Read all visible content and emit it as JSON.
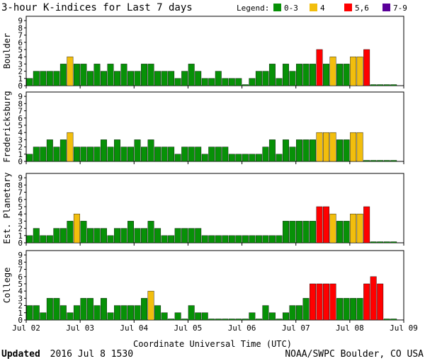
{
  "title": "3-hour K-indices for Last 7 days",
  "legend": {
    "label": "Legend:",
    "items": [
      {
        "label": "0-3",
        "color": "#079107"
      },
      {
        "label": "4",
        "color": "#f2be0d"
      },
      {
        "label": "5,6",
        "color": "#ff0000"
      },
      {
        "label": "7-9",
        "color": "#5a0099"
      }
    ]
  },
  "xlabel": "Coordinate Universal Time (UTC)",
  "footer": {
    "updated_label": "Updated",
    "updated_value": "2016 Jul  8 1530",
    "credit": "NOAA/SWPC Boulder, CO USA"
  },
  "chart_data": {
    "type": "bar",
    "x_ticks": [
      "Jul 02",
      "Jul 03",
      "Jul 04",
      "Jul 05",
      "Jul 06",
      "Jul 07",
      "Jul 08",
      "Jul 09"
    ],
    "y_ticks": [
      "0",
      "1",
      "2",
      "3",
      "4",
      "5",
      "6",
      "7",
      "8",
      "9"
    ],
    "ylim": [
      0,
      9
    ],
    "bars_per_day": 8,
    "legend_placement": "top-right",
    "grid": false,
    "panels": [
      {
        "name": "Boulder",
        "values": [
          1,
          2,
          2,
          2,
          2,
          3,
          4,
          3,
          3,
          2,
          3,
          2,
          3,
          2,
          3,
          2,
          2,
          3,
          3,
          2,
          2,
          2,
          1,
          2,
          3,
          2,
          1,
          1,
          2,
          1,
          1,
          1,
          0,
          1,
          2,
          2,
          3,
          1,
          3,
          2,
          3,
          3,
          3,
          5,
          3,
          4,
          3,
          3,
          4,
          4,
          5,
          0,
          0,
          0,
          0
        ]
      },
      {
        "name": "Fredericksburg",
        "values": [
          1,
          2,
          2,
          3,
          2,
          3,
          4,
          2,
          2,
          2,
          2,
          3,
          2,
          3,
          2,
          2,
          3,
          2,
          3,
          2,
          2,
          2,
          1,
          2,
          2,
          2,
          1,
          2,
          2,
          2,
          1,
          1,
          1,
          1,
          1,
          2,
          3,
          1,
          3,
          2,
          3,
          3,
          3,
          4,
          4,
          4,
          3,
          3,
          4,
          4,
          0,
          0,
          0,
          0,
          0
        ]
      },
      {
        "name": "Est. Planetary",
        "values": [
          1,
          2,
          1,
          1,
          2,
          2,
          3,
          4,
          3,
          2,
          2,
          2,
          1,
          2,
          2,
          3,
          2,
          2,
          3,
          2,
          1,
          1,
          2,
          2,
          2,
          2,
          1,
          1,
          1,
          1,
          1,
          1,
          1,
          1,
          1,
          1,
          1,
          1,
          3,
          3,
          3,
          3,
          3,
          5,
          5,
          4,
          3,
          3,
          4,
          4,
          5,
          0,
          0,
          0,
          0
        ]
      },
      {
        "name": "College",
        "values": [
          2,
          2,
          1,
          3,
          3,
          2,
          1,
          2,
          3,
          3,
          2,
          3,
          1,
          2,
          2,
          2,
          2,
          3,
          4,
          2,
          1,
          0,
          1,
          0,
          2,
          1,
          1,
          0,
          0,
          0,
          0,
          0,
          0,
          1,
          0,
          2,
          1,
          0,
          1,
          2,
          2,
          3,
          5,
          5,
          5,
          5,
          3,
          3,
          3,
          3,
          5,
          6,
          5,
          0,
          0
        ]
      }
    ]
  }
}
